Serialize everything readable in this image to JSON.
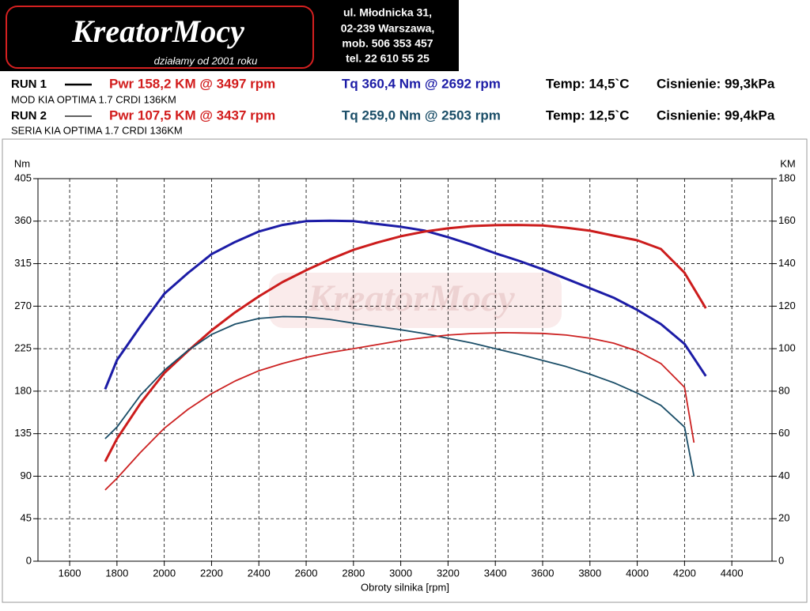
{
  "header": {
    "logo": "KreatorMocy",
    "slogan": "działamy od 2001 roku",
    "address": [
      "ul. Młodnicka 31,",
      "02-239  Warszawa,",
      "mob.  506 353 457",
      "tel.  22 610 55 25"
    ]
  },
  "runs": [
    {
      "label": "RUN 1",
      "pwr": "Pwr  158,2 KM @ 3497 rpm",
      "tq": "Tq 360,4 Nm @ 2692 rpm",
      "temp": "Temp: 14,5`C",
      "pressure": "Cisnienie: 99,3kPa",
      "car": "MOD KIA OPTIMA 1.7 CRDI 136KM"
    },
    {
      "label": "RUN 2",
      "pwr": "Pwr  107,5 KM @ 3437 rpm",
      "tq": "Tq 259,0 Nm @ 2503 rpm",
      "temp": "Temp: 12,5`C",
      "pressure": "Cisnienie: 99,4kPa",
      "car": "SERIA KIA OPTIMA 1.7 CRDI 136KM"
    }
  ],
  "chart_data": {
    "type": "line",
    "x_label": "Obroty silnika [rpm]",
    "y_label": "Nm",
    "y2_label": "KM",
    "xlim": [
      1466,
      4570
    ],
    "xticks": [
      1600,
      1800,
      2000,
      2200,
      2400,
      2600,
      2800,
      3000,
      3200,
      3400,
      3600,
      3800,
      4000,
      4200,
      4400
    ],
    "ylim": [
      0,
      405
    ],
    "yticks": [
      0,
      45,
      90,
      135,
      180,
      225,
      270,
      315,
      360,
      405
    ],
    "y2lim": [
      0,
      180
    ],
    "y2ticks": [
      0,
      20,
      40,
      60,
      80,
      100,
      120,
      140,
      160,
      180
    ],
    "grid": true,
    "series": [
      {
        "color": "#1c1ca6",
        "axis": "y",
        "x": [
          1750,
          1800,
          1900,
          2000,
          2100,
          2200,
          2300,
          2400,
          2500,
          2600,
          2700,
          2800,
          2900,
          3000,
          3100,
          3200,
          3300,
          3400,
          3500,
          3600,
          3700,
          3800,
          3900,
          4000,
          4100,
          4200,
          4290
        ],
        "values": [
          182,
          213,
          249,
          283,
          305,
          325,
          338,
          349,
          356,
          360,
          360.4,
          360,
          357,
          354,
          350,
          343,
          335,
          326,
          318,
          309,
          299,
          289,
          279,
          266,
          251,
          230,
          196
        ]
      },
      {
        "color": "#cc1c1c",
        "axis": "y2",
        "x": [
          1750,
          1800,
          1900,
          2000,
          2100,
          2200,
          2300,
          2400,
          2500,
          2600,
          2700,
          2800,
          2900,
          3000,
          3100,
          3200,
          3300,
          3400,
          3497,
          3600,
          3700,
          3800,
          3900,
          4000,
          4100,
          4200,
          4290
        ],
        "values": [
          46.9,
          57.6,
          74.4,
          88.5,
          98.9,
          108.6,
          117.1,
          124.6,
          131.3,
          136.9,
          142,
          146.5,
          149.9,
          152.9,
          155.1,
          156.6,
          157.7,
          158.1,
          158.2,
          158,
          156.9,
          155.5,
          153.2,
          151,
          146.9,
          135.7,
          119
        ]
      },
      {
        "color": "#1b4e68",
        "axis": "y",
        "x": [
          1750,
          1800,
          1900,
          2000,
          2100,
          2200,
          2300,
          2400,
          2503,
          2600,
          2700,
          2800,
          2900,
          3000,
          3100,
          3200,
          3300,
          3400,
          3500,
          3600,
          3700,
          3800,
          3900,
          4000,
          4100,
          4200,
          4240
        ],
        "values": [
          129.7,
          142,
          176,
          202,
          223,
          240,
          251,
          257,
          259,
          258.6,
          256,
          252,
          248.5,
          245,
          241,
          236,
          231,
          225,
          219,
          212.5,
          206,
          198,
          189,
          178,
          165,
          142,
          90
        ]
      },
      {
        "color": "#cc2222",
        "axis": "y2",
        "x": [
          1750,
          1800,
          1900,
          2000,
          2100,
          2200,
          2300,
          2400,
          2500,
          2600,
          2700,
          2800,
          2900,
          3000,
          3100,
          3200,
          3300,
          3437,
          3500,
          3600,
          3700,
          3800,
          3900,
          4000,
          4100,
          4200,
          4240
        ],
        "values": [
          33.5,
          39,
          51.3,
          62.5,
          71.4,
          78.8,
          84.8,
          89.6,
          93,
          95.9,
          98.2,
          100,
          101.9,
          103.8,
          105.2,
          106.4,
          107.1,
          107.5,
          107.4,
          107.2,
          106.4,
          104.9,
          102.6,
          98.9,
          93,
          81.8,
          55.8
        ]
      }
    ]
  }
}
